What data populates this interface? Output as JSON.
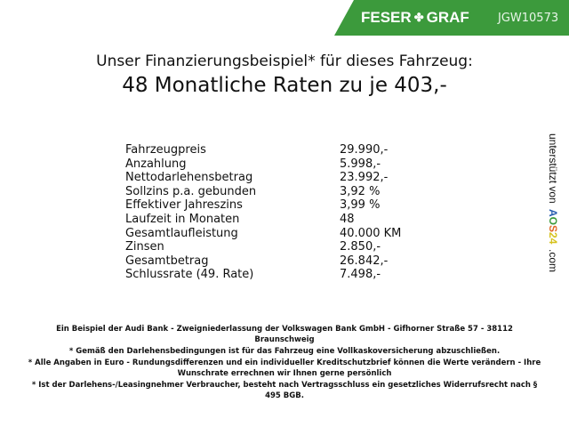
{
  "banner": {
    "brand": "FESER",
    "brand2": "GRAF",
    "code": "JGW10573",
    "color": "#3c9a3c"
  },
  "title": {
    "line1": "Unser Finanzierungsbeispiel* für dieses Fahrzeug:",
    "line2": "48 Monatliche Raten zu je 403,-"
  },
  "rows": [
    {
      "label": "Fahrzeugpreis",
      "value": "29.990,-"
    },
    {
      "label": "Anzahlung",
      "value": "5.998,-"
    },
    {
      "label": "Nettodarlehensbetrag",
      "value": "23.992,-"
    },
    {
      "label": "Sollzins p.a. gebunden",
      "value": "3,92 %"
    },
    {
      "label": "Effektiver Jahreszins",
      "value": "3,99 %"
    },
    {
      "label": "Laufzeit in Monaten",
      "value": "48"
    },
    {
      "label": "Gesamtlaufleistung",
      "value": "40.000 KM"
    },
    {
      "label": "Zinsen",
      "value": "2.850,-"
    },
    {
      "label": "Gesamtbetrag",
      "value": "26.842,-"
    },
    {
      "label": "Schlussrate (49. Rate)",
      "value": "7.498,-"
    }
  ],
  "side": {
    "prefix": "unterstützt von",
    "logo": "AOS24",
    "suffix": ".com"
  },
  "footer": [
    "Ein Beispiel der Audi Bank - Zweigniederlassung der Volkswagen Bank GmbH - Gifhorner Straße 57 - 38112 Braunschweig",
    "* Gemäß den Darlehensbedingungen ist für das Fahrzeug eine Vollkaskoversicherung abzuschließen.",
    "* Alle Angaben in Euro - Rundungsdifferenzen und ein individueller Kreditschutzbrief können die Werte verändern - Ihre Wunschrate errechnen wir Ihnen gerne persönlich",
    "* Ist der Darlehens-/Leasingnehmer Verbraucher, besteht nach Vertragsschluss ein gesetzliches Widerrufsrecht nach § 495 BGB."
  ]
}
